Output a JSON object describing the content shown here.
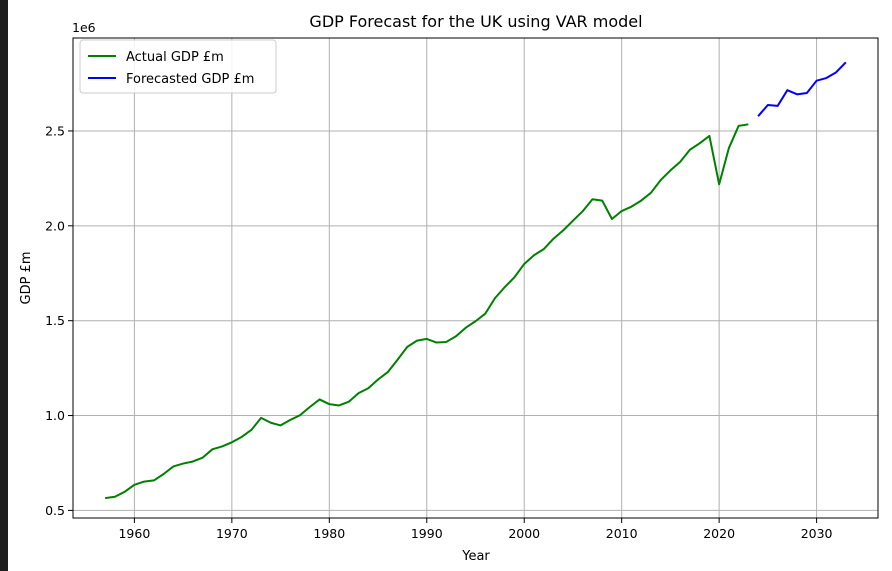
{
  "chart_data": {
    "type": "line",
    "title": "GDP Forecast for the UK using VAR model",
    "xlabel": "Year",
    "ylabel": "GDP £m",
    "y_offset_label": "1e6",
    "xlim": [
      1953.7,
      2036.3
    ],
    "ylim": [
      0.46,
      2.99
    ],
    "y_scale_multiplier": 1000000,
    "x_ticks": [
      1960,
      1970,
      1980,
      1990,
      2000,
      2010,
      2020,
      2030
    ],
    "x_tick_labels": [
      "1960",
      "1970",
      "1980",
      "1990",
      "2000",
      "2010",
      "2020",
      "2030"
    ],
    "y_ticks": [
      0.5,
      1.0,
      1.5,
      2.0,
      2.5
    ],
    "y_tick_labels": [
      "0.5",
      "1.0",
      "1.5",
      "2.0",
      "2.5"
    ],
    "grid": true,
    "legend_position": "top-left",
    "series": [
      {
        "name": "Actual GDP £m",
        "color": "#008000",
        "x": [
          1957,
          1958,
          1959,
          1960,
          1961,
          1962,
          1963,
          1964,
          1965,
          1966,
          1967,
          1968,
          1969,
          1970,
          1971,
          1972,
          1973,
          1974,
          1975,
          1976,
          1977,
          1978,
          1979,
          1980,
          1981,
          1982,
          1983,
          1984,
          1985,
          1986,
          1987,
          1988,
          1989,
          1990,
          1991,
          1992,
          1993,
          1994,
          1995,
          1996,
          1997,
          1998,
          1999,
          2000,
          2001,
          2002,
          2003,
          2004,
          2005,
          2006,
          2007,
          2008,
          2009,
          2010,
          2011,
          2012,
          2013,
          2014,
          2015,
          2016,
          2017,
          2018,
          2019,
          2020,
          2021,
          2022,
          2023
        ],
        "y": [
          0.565,
          0.572,
          0.598,
          0.635,
          0.652,
          0.658,
          0.692,
          0.732,
          0.747,
          0.758,
          0.778,
          0.822,
          0.837,
          0.859,
          0.887,
          0.924,
          0.988,
          0.962,
          0.948,
          0.977,
          1.002,
          1.045,
          1.085,
          1.06,
          1.053,
          1.073,
          1.118,
          1.144,
          1.19,
          1.229,
          1.294,
          1.362,
          1.395,
          1.404,
          1.385,
          1.388,
          1.418,
          1.463,
          1.497,
          1.537,
          1.619,
          1.677,
          1.729,
          1.799,
          1.845,
          1.877,
          1.932,
          1.976,
          2.027,
          2.077,
          2.14,
          2.133,
          2.036,
          2.078,
          2.101,
          2.133,
          2.174,
          2.241,
          2.292,
          2.337,
          2.401,
          2.435,
          2.474,
          2.219,
          2.41,
          2.527,
          2.535
        ]
      },
      {
        "name": "Forecasted GDP £m",
        "color": "#0000ff",
        "x": [
          2024,
          2025,
          2026,
          2027,
          2028,
          2029,
          2030,
          2031,
          2032,
          2033
        ],
        "y": [
          2.578,
          2.637,
          2.632,
          2.715,
          2.693,
          2.7,
          2.765,
          2.779,
          2.809,
          2.862
        ]
      }
    ]
  }
}
